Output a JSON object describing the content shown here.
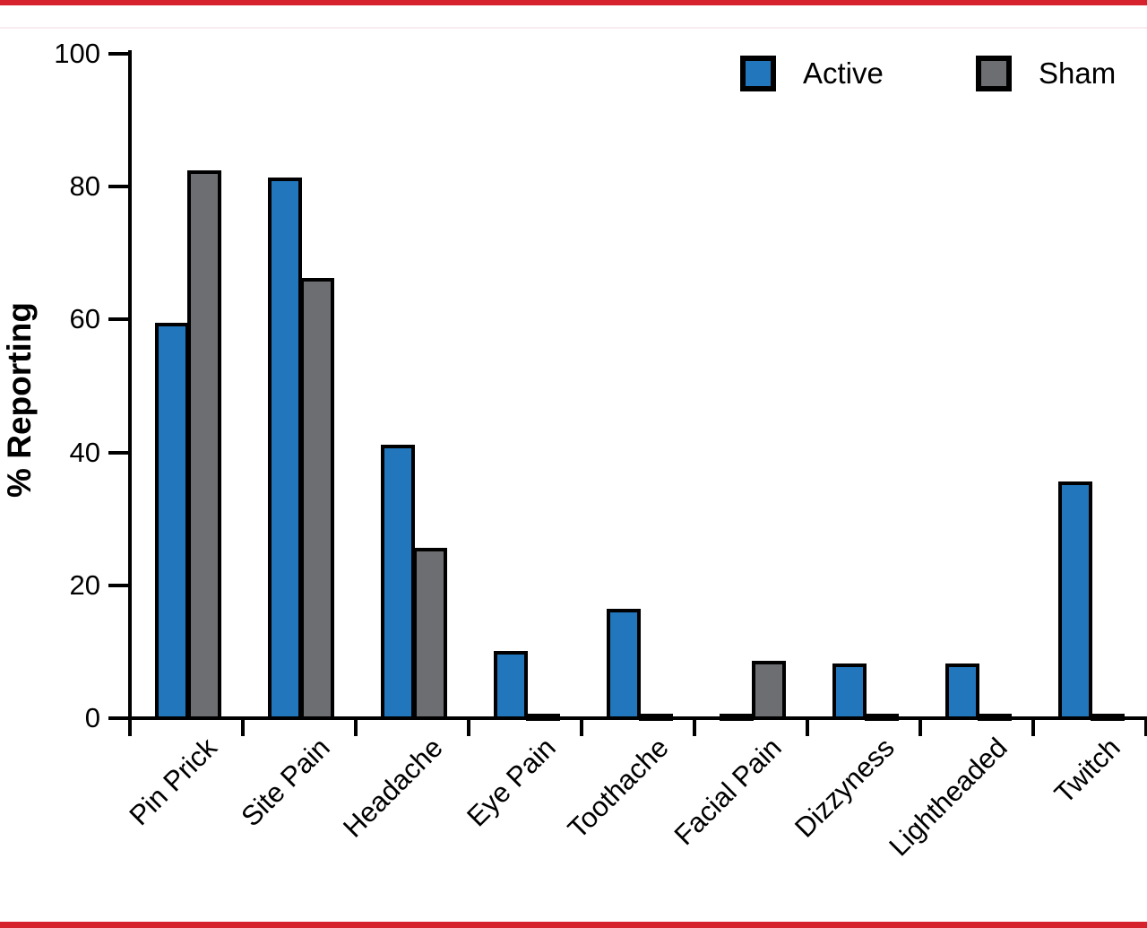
{
  "page": {
    "background": "#ffffff",
    "border_color": "#d5222d"
  },
  "chart_data": {
    "type": "bar",
    "title": "",
    "xlabel": "",
    "ylabel": "% Reporting",
    "ylim": [
      0,
      100
    ],
    "yticks": [
      0,
      20,
      40,
      60,
      80,
      100
    ],
    "grid": false,
    "legend_position": "top-right",
    "bar_outline_color": "#000000",
    "categories": [
      "Pin Prick",
      "Site Pain",
      "Headache",
      "Eye Pain",
      "Toothache",
      "Facial Pain",
      "Dizzyness",
      "Lightheaded",
      "Twitch"
    ],
    "series": [
      {
        "name": "Active",
        "color": "#2176bc",
        "values": [
          59.5,
          81.4,
          41.2,
          10.1,
          16.5,
          0.7,
          8.2,
          8.2,
          35.6
        ]
      },
      {
        "name": "Sham",
        "color": "#6d6e71",
        "values": [
          82.4,
          66.3,
          25.6,
          0.7,
          0.7,
          8.7,
          0.7,
          0.7,
          0.7
        ]
      }
    ]
  }
}
